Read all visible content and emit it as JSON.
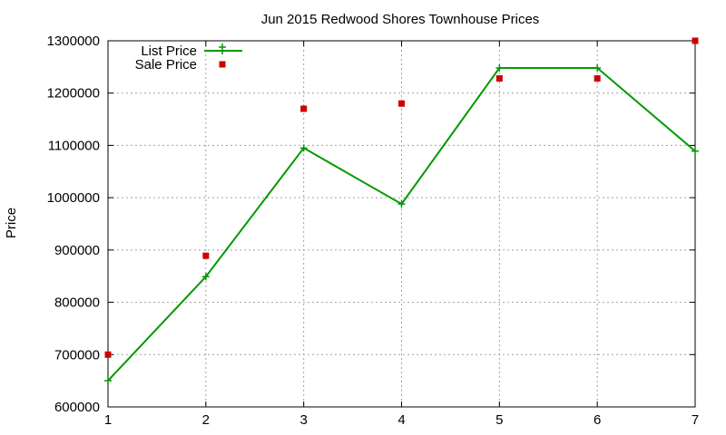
{
  "chart_data": {
    "type": "line",
    "title": "Jun 2015 Redwood Shores Townhouse Prices",
    "xlabel": "",
    "ylabel": "Price",
    "x": [
      1,
      2,
      3,
      4,
      5,
      6,
      7
    ],
    "xlim": [
      1,
      7
    ],
    "ylim": [
      600000,
      1300000
    ],
    "xticks": [
      "1",
      "2",
      "3",
      "4",
      "5",
      "6",
      "7"
    ],
    "yticks": [
      "600000",
      "700000",
      "800000",
      "900000",
      "1000000",
      "1100000",
      "1200000",
      "1300000"
    ],
    "grid": true,
    "legend_position": "top-left",
    "series": [
      {
        "name": "List Price",
        "style": "line with plus markers",
        "color": "#009900",
        "values": [
          650000,
          849000,
          1095000,
          988000,
          1248000,
          1248000,
          1089000
        ]
      },
      {
        "name": "Sale Price",
        "style": "square points",
        "color": "#cc0000",
        "values": [
          700000,
          889000,
          1170000,
          1180000,
          1228000,
          1228000,
          1300000
        ]
      }
    ]
  }
}
